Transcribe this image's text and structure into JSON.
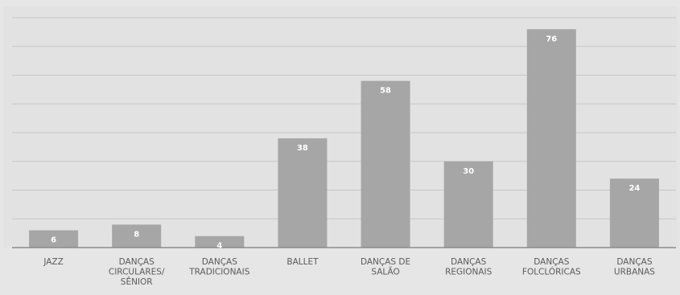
{
  "chart_data": {
    "type": "bar",
    "title": "",
    "xlabel": "",
    "ylabel": "",
    "ylim": [
      0,
      80
    ],
    "grid": true,
    "categories": [
      [
        "JAZZ"
      ],
      [
        "DANÇAS",
        "CIRCULARES/",
        "SÊNIOR"
      ],
      [
        "DANÇAS",
        "TRADICIONAIS"
      ],
      [
        "BALLET"
      ],
      [
        "DANÇAS  DE",
        "SALÃO"
      ],
      [
        "DANÇAS",
        "REGIONAIS"
      ],
      [
        "DANÇAS",
        "FOLCLÓRICAS"
      ],
      [
        "DANÇAS",
        "URBANAS"
      ]
    ],
    "values": [
      6,
      8,
      4,
      38,
      58,
      30,
      76,
      24
    ],
    "colors": {
      "bar": "#a6a6a6",
      "background": "#e6e6e6",
      "plot_background": "#e2e2e2",
      "gridline": "#c6c6c6",
      "axis": "#8c8c8c",
      "label_text": "#ffffff",
      "category_text": "#5a5a5a"
    }
  }
}
